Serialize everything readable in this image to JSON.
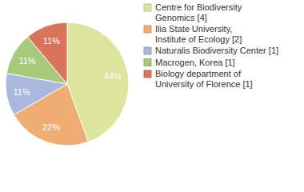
{
  "chart_data": {
    "type": "pie",
    "categories": [
      "Centre for Biodiversity\nGenomics [4]",
      "Ilia State University,\nInstitute of Ecology [2]",
      "Naturalis Biodiversity Center [1]",
      "Macrogen, Korea [1]",
      "Biology department of\nUniversity of Florence [1]"
    ],
    "values": [
      44,
      22,
      11,
      11,
      11
    ],
    "value_labels": [
      "44%",
      "22%",
      "11%",
      "11%",
      "11%"
    ],
    "colors": [
      "#dde49c",
      "#f0ad73",
      "#a9b8dc",
      "#a6c97a",
      "#d9735c"
    ],
    "data_labels": true,
    "legend": "right"
  }
}
